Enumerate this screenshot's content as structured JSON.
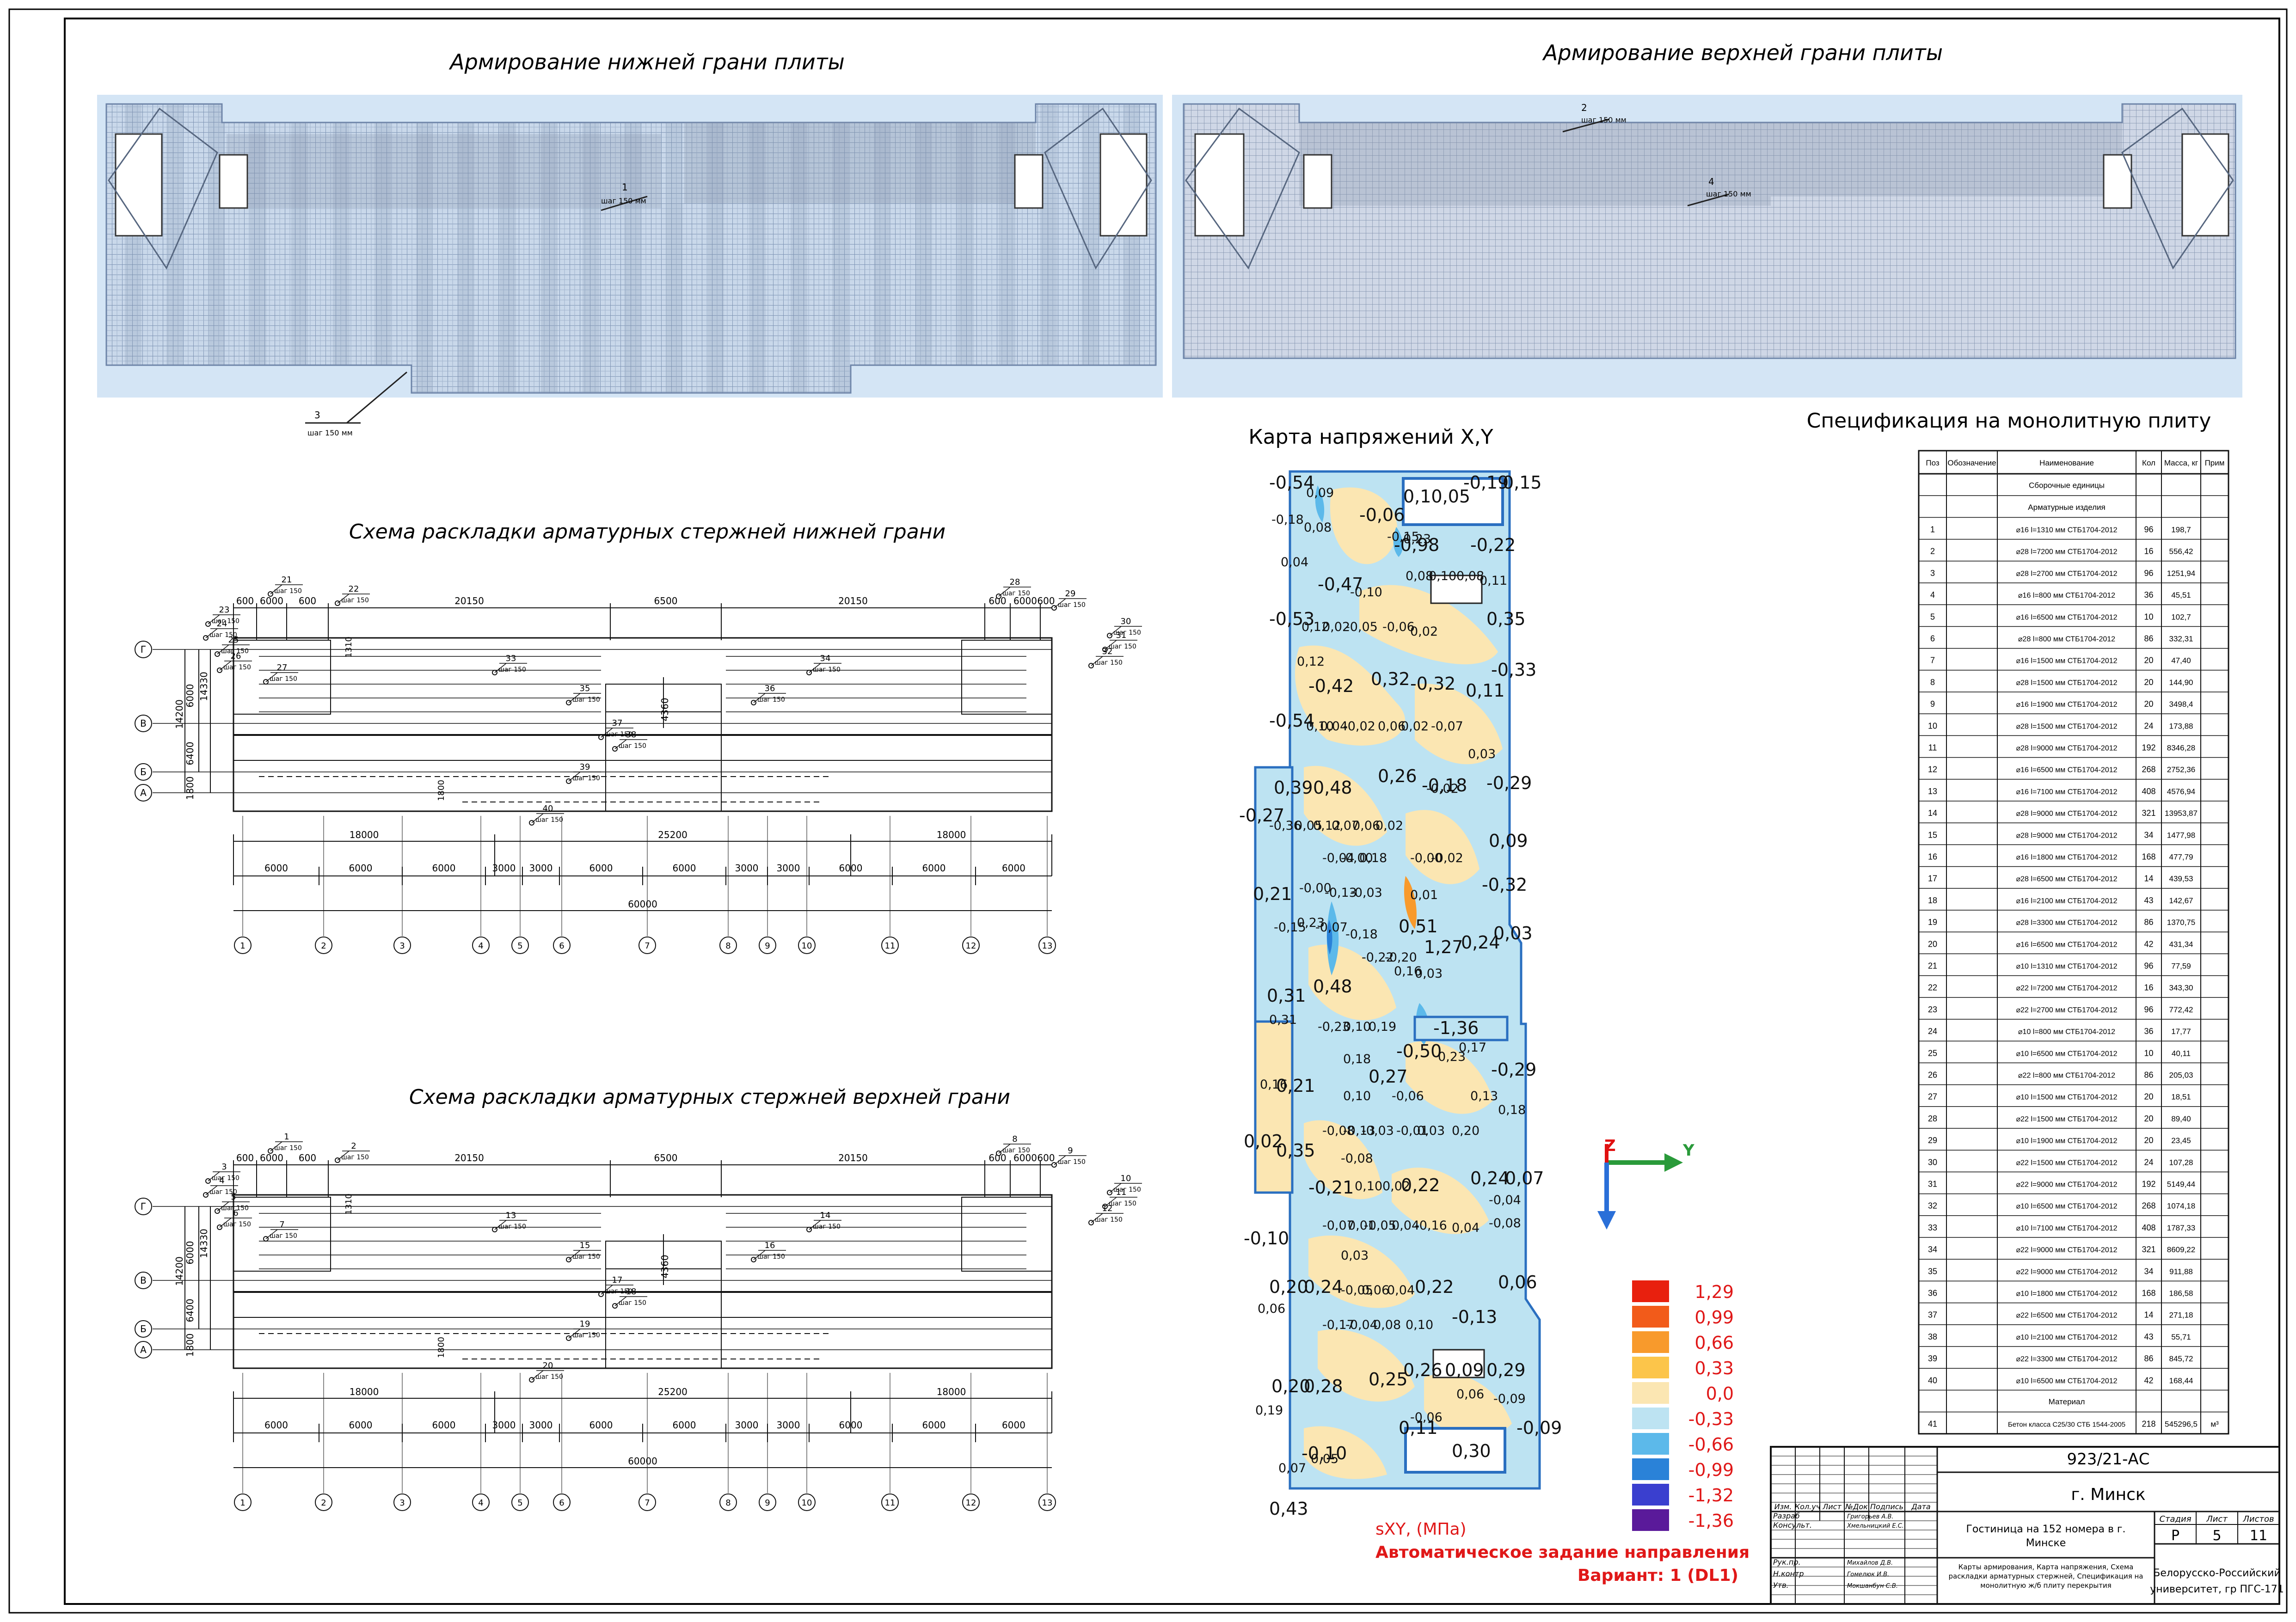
{
  "titles": {
    "bottom_reinf": "Армирование нижней грани плиты",
    "top_reinf": "Армирование верхней грани плиты",
    "bottom_scheme": "Схема раскладки арматурных стержней нижней грани",
    "top_scheme": "Схема раскладки арматурных стержней верхней грани",
    "stress_map": "Карта напряжений X,Y",
    "spec": "Спецификация на монолитную плиту"
  },
  "plan_callouts": {
    "bottom": [
      {
        "pos": "1",
        "step": "шаг 150 мм"
      },
      {
        "pos": "3",
        "step": "шаг 150 мм"
      }
    ],
    "top": [
      {
        "pos": "2",
        "step": "шаг 150 мм"
      },
      {
        "pos": "4",
        "step": "шаг 150 мм"
      }
    ]
  },
  "scheme": {
    "top_dims": [
      "600",
      "6000",
      "600",
      "20150",
      "6500",
      "20150",
      "600",
      "6000",
      "600"
    ],
    "side_dims": [
      "6000",
      "14330",
      "6400",
      "1800",
      "14200",
      "1310",
      "4360",
      "1800"
    ],
    "bottom_dims_1": [
      "18000",
      "25200",
      "18000"
    ],
    "bottom_dims_2": [
      "6000",
      "6000",
      "6000",
      "3000",
      "3000",
      "6000",
      "6000",
      "3000",
      "3000",
      "6000",
      "6000",
      "6000"
    ],
    "total": "60000",
    "axes_letters": [
      "Г",
      "В",
      "Б",
      "А"
    ],
    "axes_numbers": [
      "1",
      "2",
      "3",
      "4",
      "5",
      "6",
      "7",
      "8",
      "9",
      "10",
      "11",
      "12",
      "13"
    ],
    "bottom_positions": [
      "21",
      "22",
      "23",
      "24",
      "25",
      "26",
      "27",
      "28",
      "29",
      "30",
      "31",
      "32",
      "33",
      "34",
      "35",
      "36",
      "37",
      "38",
      "39",
      "40"
    ],
    "top_positions": [
      "1",
      "2",
      "3",
      "4",
      "5",
      "6",
      "7",
      "8",
      "9",
      "10",
      "11",
      "12",
      "13",
      "14",
      "15",
      "16",
      "17",
      "18",
      "19",
      "20"
    ],
    "step": "шаг 150"
  },
  "stress_map": {
    "labels_large": [
      "-0,54",
      "0,10,05",
      "-0,19",
      "0,15",
      "-0,06",
      "-0,98",
      "-0,22",
      "-0,47",
      "0,35",
      "-0,53",
      "-0,42",
      "0,32",
      "-0,32",
      "0,11",
      "-0,33",
      "-0,54",
      "0,39",
      "0,48",
      "0,26",
      "-0,18",
      "-0,29",
      "-0,27",
      "0,09",
      "0,21",
      "0,51",
      "-0,32",
      "1,27",
      "0,24",
      "0,03",
      "0,31",
      "0,48",
      "-1,36",
      "-0,50",
      "-0,29",
      "0,21",
      "0,27",
      "0,02",
      "0,35",
      "-0,21",
      "0,22",
      "0,24",
      "0,07",
      "-0,10",
      "0,20",
      "0,24",
      "0,22",
      "0,06",
      "-0,13",
      "0,20",
      "0,28",
      "0,25",
      "0,26",
      "0,09",
      "0,29",
      "-0,09",
      "-0,10",
      "0,11",
      "0,30",
      "0,43"
    ],
    "labels_small": [
      "0,09",
      "-0,18",
      "0,08",
      "0,04",
      "-0,15",
      "0,23",
      "0,08",
      "0,10",
      "0,08",
      "0,11",
      "-0,10",
      "0,12",
      "0,02",
      "-0,05",
      "-0,06",
      "0,02",
      "0,12",
      "0,10",
      "0,04",
      "-0,02",
      "0,06",
      "0,02",
      "-0,07",
      "0,03",
      "-0,02",
      "-0,36",
      "0,05",
      "0,12",
      "0,07",
      "0,06",
      "0,02",
      "-0,04",
      "-0,00",
      "0,18",
      "-0,00",
      "-0,02",
      "-0,00",
      "-0,13",
      "-0,03",
      "0,01",
      "-0,15",
      "0,23",
      "-0,07",
      "-0,18",
      "-0,22",
      "-0,20",
      "0,16",
      "0,03",
      "0,31",
      "-0,23",
      "0,10",
      "0,19",
      "0,18",
      "0,16",
      "0,23",
      "0,17",
      "0,10",
      "-0,06",
      "0,13",
      "0,18",
      "-0,08",
      "-0,13",
      "-0,03",
      "-0,01",
      "0,03",
      "0,20",
      "-0,04",
      "-0,08",
      "0,10",
      "0,02",
      "-0,07",
      "0,01",
      "-0,05",
      "0,04",
      "-0,16",
      "0,04",
      "-0,08",
      "0,06",
      "0,03",
      "-0,05",
      "0,06",
      "0,04",
      "-0,17",
      "-0,04",
      "0,08",
      "0,10",
      "0,19",
      "0,06",
      "-0,09",
      "-0,06",
      "0,07",
      "0,05"
    ],
    "legend_values": [
      "1,29",
      "0,99",
      "0,66",
      "0,33",
      "0,0",
      "-0,33",
      "-0,66",
      "-0,99",
      "-1,32",
      "-1,36"
    ],
    "legend_colors": [
      "#e8200e",
      "#f25b1a",
      "#f89a2c",
      "#fcc54a",
      "#fbe6b2",
      "#bde3f2",
      "#5cb9ea",
      "#2a82d8",
      "#3a3fcf",
      "#5a1a9a"
    ],
    "axis_z": "Z",
    "axis_y": "Y",
    "caption_1": "sXY, (МПа)",
    "caption_2": "Автоматическое задание направления",
    "caption_3": "Вариант: 1 (DL1)"
  },
  "spec": {
    "headers": [
      "Поз",
      "Обозначение",
      "Наименование",
      "Кол",
      "Масса, кг",
      "Прим"
    ],
    "section_1": "Сборочные единицы",
    "section_2": "Арматурные изделия",
    "rows": [
      [
        "1",
        "",
        "⌀16 l=1310 мм СТБ1704-2012",
        "96",
        "198,7"
      ],
      [
        "2",
        "",
        "⌀28 l=7200 мм СТБ1704-2012",
        "16",
        "556,42"
      ],
      [
        "3",
        "",
        "⌀28 l=2700 мм СТБ1704-2012",
        "96",
        "1251,94"
      ],
      [
        "4",
        "",
        "⌀16 l=800 мм СТБ1704-2012",
        "36",
        "45,51"
      ],
      [
        "5",
        "",
        "⌀16 l=6500 мм СТБ1704-2012",
        "10",
        "102,7"
      ],
      [
        "6",
        "",
        "⌀28 l=800 мм СТБ1704-2012",
        "86",
        "332,31"
      ],
      [
        "7",
        "",
        "⌀16 l=1500 мм СТБ1704-2012",
        "20",
        "47,40"
      ],
      [
        "8",
        "",
        "⌀28 l=1500 мм СТБ1704-2012",
        "20",
        "144,90"
      ],
      [
        "9",
        "",
        "⌀16 l=1900 мм СТБ1704-2012",
        "20",
        "3498,4"
      ],
      [
        "10",
        "",
        "⌀28 l=1500 мм СТБ1704-2012",
        "24",
        "173,88"
      ],
      [
        "11",
        "",
        "⌀28 l=9000 мм СТБ1704-2012",
        "192",
        "8346,28"
      ],
      [
        "12",
        "",
        "⌀16 l=6500 мм СТБ1704-2012",
        "268",
        "2752,36"
      ],
      [
        "13",
        "",
        "⌀16 l=7100 мм СТБ1704-2012",
        "408",
        "4576,94"
      ],
      [
        "14",
        "",
        "⌀28 l=9000 мм СТБ1704-2012",
        "321",
        "13953,87"
      ],
      [
        "15",
        "",
        "⌀28 l=9000 мм СТБ1704-2012",
        "34",
        "1477,98"
      ],
      [
        "16",
        "",
        "⌀16 l=1800 мм СТБ1704-2012",
        "168",
        "477,79"
      ],
      [
        "17",
        "",
        "⌀28 l=6500 мм СТБ1704-2012",
        "14",
        "439,53"
      ],
      [
        "18",
        "",
        "⌀16 l=2100 мм СТБ1704-2012",
        "43",
        "142,67"
      ],
      [
        "19",
        "",
        "⌀28 l=3300 мм СТБ1704-2012",
        "86",
        "1370,75"
      ],
      [
        "20",
        "",
        "⌀16 l=6500 мм СТБ1704-2012",
        "42",
        "431,34"
      ],
      [
        "21",
        "",
        "⌀10 l=1310 мм СТБ1704-2012",
        "96",
        "77,59"
      ],
      [
        "22",
        "",
        "⌀22 l=7200 мм СТБ1704-2012",
        "16",
        "343,30"
      ],
      [
        "23",
        "",
        "⌀22 l=2700 мм СТБ1704-2012",
        "96",
        "772,42"
      ],
      [
        "24",
        "",
        "⌀10 l=800 мм СТБ1704-2012",
        "36",
        "17,77"
      ],
      [
        "25",
        "",
        "⌀10 l=6500 мм СТБ1704-2012",
        "10",
        "40,11"
      ],
      [
        "26",
        "",
        "⌀22 l=800 мм СТБ1704-2012",
        "86",
        "205,03"
      ],
      [
        "27",
        "",
        "⌀10 l=1500 мм СТБ1704-2012",
        "20",
        "18,51"
      ],
      [
        "28",
        "",
        "⌀22 l=1500 мм СТБ1704-2012",
        "20",
        "89,40"
      ],
      [
        "29",
        "",
        "⌀10 l=1900 мм СТБ1704-2012",
        "20",
        "23,45"
      ],
      [
        "30",
        "",
        "⌀22 l=1500 мм СТБ1704-2012",
        "24",
        "107,28"
      ],
      [
        "31",
        "",
        "⌀22 l=9000 мм СТБ1704-2012",
        "192",
        "5149,44"
      ],
      [
        "32",
        "",
        "⌀10 l=6500 мм СТБ1704-2012",
        "268",
        "1074,18"
      ],
      [
        "33",
        "",
        "⌀10 l=7100 мм СТБ1704-2012",
        "408",
        "1787,33"
      ],
      [
        "34",
        "",
        "⌀22 l=9000 мм СТБ1704-2012",
        "321",
        "8609,22"
      ],
      [
        "35",
        "",
        "⌀22 l=9000 мм СТБ1704-2012",
        "34",
        "911,88"
      ],
      [
        "36",
        "",
        "⌀10 l=1800 мм СТБ1704-2012",
        "168",
        "186,58"
      ],
      [
        "37",
        "",
        "⌀22 l=6500 мм СТБ1704-2012",
        "14",
        "271,18"
      ],
      [
        "38",
        "",
        "⌀10 l=2100 мм СТБ1704-2012",
        "43",
        "55,71"
      ],
      [
        "39",
        "",
        "⌀22 l=3300 мм СТБ1704-2012",
        "86",
        "845,72"
      ],
      [
        "40",
        "",
        "⌀10 l=6500 мм СТБ1704-2012",
        "42",
        "168,44"
      ]
    ],
    "section_3": "Материал",
    "row_41": [
      "41",
      "",
      "Бетон класса С25/30 СТБ 1544-2005",
      "218",
      "545296,5",
      "м³"
    ]
  },
  "stamp": {
    "code": "923/21-АС",
    "city": "г. Минск",
    "head_cols": [
      "Изм.",
      "Кол.уч",
      "Лист",
      "№Док",
      "Подпись",
      "Дата"
    ],
    "roles": [
      "Разраб",
      "Консульт.",
      "",
      "Рук.пр.",
      "Н.контр",
      "Утв."
    ],
    "names": [
      "Григорьев А.В.",
      "Хмельницкий Е.С.",
      "",
      "Михайлов Д.В.",
      "Гомелюк И.В.",
      "Мокшанбун С.В."
    ],
    "object_line1": "Гостиница на 152 номера в г.",
    "object_line2": "Минске",
    "stage_head": [
      "Стадия",
      "Лист",
      "Листов"
    ],
    "stage_vals": [
      "Р",
      "5",
      "11"
    ],
    "sheet_desc": "Карты армирования, Карта напряжения, Схема раскладки арматурных стержней, Спецификация на монолитную ж/б плиту перекрытия",
    "org_line1": "Белорусско-Российский",
    "org_line2": "университет, гр ПГС-171"
  }
}
